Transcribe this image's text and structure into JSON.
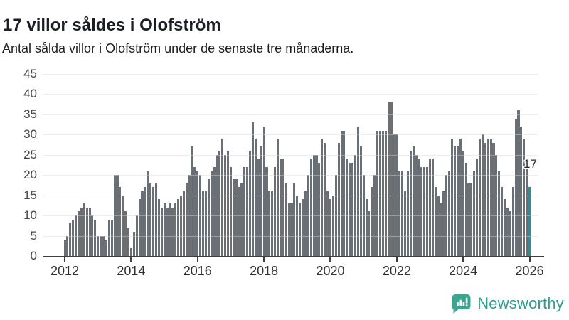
{
  "header": {
    "title": "17 villor såldes i Olofström",
    "subtitle": "Antal sålda villor i Olofström under de senaste tre månaderna."
  },
  "chart_data": {
    "type": "bar",
    "title": "17 villor såldes i Olofström",
    "subtitle": "Antal sålda villor i Olofström under de senaste tre månaderna.",
    "xlabel": "",
    "ylabel": "",
    "frequency": "monthly",
    "start_period": "2012-01",
    "end_period": "2026-01",
    "ylim": [
      0,
      45
    ],
    "y_ticks": [
      0,
      5,
      10,
      15,
      20,
      25,
      30,
      35,
      40,
      45
    ],
    "x_ticks": [
      "2012",
      "2014",
      "2016",
      "2018",
      "2020",
      "2022",
      "2024",
      "2026"
    ],
    "grid": "horizontal",
    "legend": "none",
    "values": [
      4,
      5,
      8,
      9,
      10,
      11,
      12,
      13,
      12,
      12,
      10,
      9,
      5,
      5,
      5,
      4,
      9,
      9,
      20,
      20,
      17,
      15,
      11,
      7,
      2,
      6,
      10,
      14,
      16,
      17,
      21,
      18,
      17,
      18,
      14,
      12,
      13,
      12,
      13,
      12,
      13,
      14,
      15,
      16,
      18,
      20,
      27,
      22,
      21,
      20,
      16,
      16,
      19,
      21,
      22,
      25,
      26,
      29,
      25,
      26,
      22,
      19,
      19,
      17,
      18,
      22,
      22,
      26,
      33,
      29,
      24,
      27,
      32,
      22,
      16,
      16,
      22,
      29,
      24,
      24,
      18,
      13,
      13,
      18,
      15,
      13,
      14,
      16,
      20,
      24,
      25,
      25,
      23,
      29,
      28,
      16,
      14,
      15,
      20,
      28,
      31,
      31,
      24,
      23,
      23,
      25,
      32,
      27,
      20,
      14,
      11,
      17,
      20,
      31,
      31,
      31,
      31,
      38,
      38,
      30,
      30,
      21,
      21,
      16,
      21,
      26,
      27,
      25,
      24,
      22,
      22,
      22,
      24,
      24,
      17,
      15,
      13,
      16,
      20,
      21,
      29,
      27,
      27,
      29,
      26,
      23,
      18,
      18,
      21,
      24,
      29,
      30,
      28,
      29,
      29,
      28,
      25,
      21,
      17,
      14,
      12,
      11,
      17,
      34,
      36,
      32,
      29,
      24,
      17
    ],
    "highlight": {
      "index": 168,
      "value": 17,
      "label": "17",
      "color": "#18989e"
    },
    "bar_color": "#6a6e75"
  },
  "footer": {
    "brand": "Newsworthy",
    "logo_icon": "newsworthy-chart-bubble-icon",
    "brand_color": "#2f9d8d"
  },
  "colors": {
    "bar": "#6a6e75",
    "highlight": "#18989e",
    "grid": "#e4e5e7",
    "axis": "#3c3e44",
    "title": "#1c1e27",
    "subtitle": "#1e1e1e",
    "tick_labels": "#46474b"
  }
}
